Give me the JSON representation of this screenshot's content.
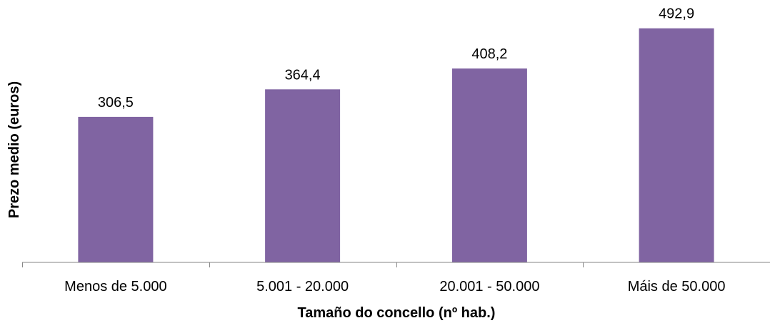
{
  "chart_data": {
    "type": "bar",
    "title": "",
    "xlabel": "Tamaño do concello (nº hab.)",
    "ylabel": "Prezo medio (euros)",
    "categories": [
      "Menos de 5.000",
      "5.001 - 20.000",
      "20.001 - 50.000",
      "Máis de 50.000"
    ],
    "values": [
      306.5,
      364.4,
      408.2,
      492.9
    ],
    "value_labels": [
      "306,5",
      "364,4",
      "408,2",
      "492,9"
    ],
    "ylim": [
      0,
      500
    ],
    "grid": false,
    "legend": "none",
    "bar_color": "#8064A2",
    "axis_color": "#868686"
  }
}
